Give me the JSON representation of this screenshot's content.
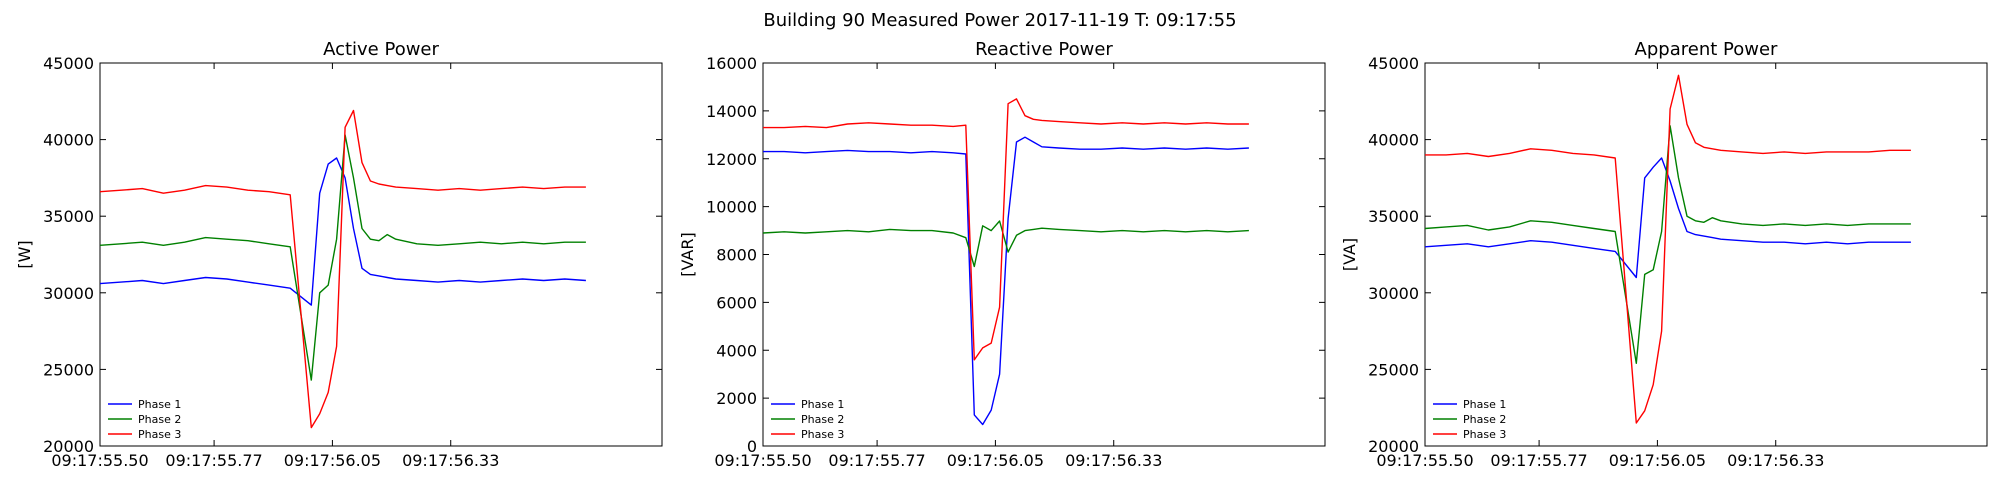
{
  "figure": {
    "suptitle": "Building 90 Measured Power 2017-11-19 T: 09:17:55"
  },
  "colors": {
    "Phase 1": "#0000ff",
    "Phase 2": "#008000",
    "Phase 3": "#ff0000"
  },
  "chart_data": [
    {
      "type": "line",
      "title": "Active Power",
      "ylabel": "[W]",
      "xlabel": "",
      "grid": false,
      "legend": "bottom-left",
      "xlim": [
        0,
        1.33
      ],
      "ylim": [
        20000,
        45000
      ],
      "yticks": [
        20000,
        25000,
        30000,
        35000,
        40000,
        45000
      ],
      "xticks": [
        {
          "t": 0.0,
          "label": "09:17:55.50"
        },
        {
          "t": 0.27,
          "label": "09:17:55.77"
        },
        {
          "t": 0.55,
          "label": "09:17:56.05"
        },
        {
          "t": 0.83,
          "label": "09:17:56.33"
        }
      ],
      "x": [
        0.0,
        0.05,
        0.1,
        0.15,
        0.2,
        0.25,
        0.3,
        0.35,
        0.4,
        0.45,
        0.5,
        0.52,
        0.54,
        0.56,
        0.58,
        0.6,
        0.62,
        0.64,
        0.66,
        0.68,
        0.7,
        0.75,
        0.8,
        0.85,
        0.9,
        0.95,
        1.0,
        1.05,
        1.1,
        1.15
      ],
      "series": [
        {
          "name": "Phase 1",
          "values": [
            30600,
            30700,
            30800,
            30600,
            30800,
            31000,
            30900,
            30700,
            30500,
            30300,
            29200,
            36500,
            38400,
            38800,
            37500,
            34200,
            31600,
            31200,
            31100,
            31000,
            30900,
            30800,
            30700,
            30800,
            30700,
            30800,
            30900,
            30800,
            30900,
            30800
          ]
        },
        {
          "name": "Phase 2",
          "values": [
            33100,
            33200,
            33300,
            33100,
            33300,
            33600,
            33500,
            33400,
            33200,
            33000,
            24300,
            30000,
            30500,
            33500,
            40300,
            37500,
            34200,
            33500,
            33400,
            33800,
            33500,
            33200,
            33100,
            33200,
            33300,
            33200,
            33300,
            33200,
            33300,
            33300
          ]
        },
        {
          "name": "Phase 3",
          "values": [
            36600,
            36700,
            36800,
            36500,
            36700,
            37000,
            36900,
            36700,
            36600,
            36400,
            21200,
            22100,
            23500,
            26500,
            40800,
            41900,
            38500,
            37300,
            37100,
            37000,
            36900,
            36800,
            36700,
            36800,
            36700,
            36800,
            36900,
            36800,
            36900,
            36900
          ]
        }
      ]
    },
    {
      "type": "line",
      "title": "Reactive Power",
      "ylabel": "[VAR]",
      "xlabel": "",
      "grid": false,
      "legend": "bottom-left",
      "xlim": [
        0,
        1.33
      ],
      "ylim": [
        0,
        16000
      ],
      "yticks": [
        0,
        2000,
        4000,
        6000,
        8000,
        10000,
        12000,
        14000,
        16000
      ],
      "xticks": [
        {
          "t": 0.0,
          "label": "09:17:55.50"
        },
        {
          "t": 0.27,
          "label": "09:17:55.77"
        },
        {
          "t": 0.55,
          "label": "09:17:56.05"
        },
        {
          "t": 0.83,
          "label": "09:17:56.33"
        }
      ],
      "x": [
        0.0,
        0.05,
        0.1,
        0.15,
        0.2,
        0.25,
        0.3,
        0.35,
        0.4,
        0.45,
        0.48,
        0.5,
        0.52,
        0.54,
        0.56,
        0.58,
        0.6,
        0.62,
        0.64,
        0.66,
        0.7,
        0.75,
        0.8,
        0.85,
        0.9,
        0.95,
        1.0,
        1.05,
        1.1,
        1.15
      ],
      "series": [
        {
          "name": "Phase 1",
          "values": [
            12300,
            12300,
            12250,
            12300,
            12350,
            12300,
            12300,
            12250,
            12300,
            12250,
            12200,
            1300,
            900,
            1500,
            3000,
            9500,
            12700,
            12900,
            12700,
            12500,
            12450,
            12400,
            12400,
            12450,
            12400,
            12450,
            12400,
            12450,
            12400,
            12450
          ]
        },
        {
          "name": "Phase 2",
          "values": [
            8900,
            8950,
            8900,
            8950,
            9000,
            8950,
            9050,
            9000,
            9000,
            8900,
            8700,
            7500,
            9200,
            9000,
            9400,
            8100,
            8800,
            9000,
            9050,
            9100,
            9050,
            9000,
            8950,
            9000,
            8950,
            9000,
            8950,
            9000,
            8950,
            9000
          ]
        },
        {
          "name": "Phase 3",
          "values": [
            13300,
            13300,
            13350,
            13300,
            13450,
            13500,
            13450,
            13400,
            13400,
            13350,
            13400,
            3600,
            4100,
            4300,
            5800,
            14300,
            14500,
            13800,
            13650,
            13600,
            13550,
            13500,
            13450,
            13500,
            13450,
            13500,
            13450,
            13500,
            13450,
            13450
          ]
        }
      ]
    },
    {
      "type": "line",
      "title": "Apparent Power",
      "ylabel": "[VA]",
      "xlabel": "",
      "grid": false,
      "legend": "bottom-left",
      "xlim": [
        0,
        1.33
      ],
      "ylim": [
        20000,
        45000
      ],
      "yticks": [
        20000,
        25000,
        30000,
        35000,
        40000,
        45000
      ],
      "xticks": [
        {
          "t": 0.0,
          "label": "09:17:55.50"
        },
        {
          "t": 0.27,
          "label": "09:17:55.77"
        },
        {
          "t": 0.55,
          "label": "09:17:56.05"
        },
        {
          "t": 0.83,
          "label": "09:17:56.33"
        }
      ],
      "x": [
        0.0,
        0.05,
        0.1,
        0.15,
        0.2,
        0.25,
        0.3,
        0.35,
        0.4,
        0.45,
        0.5,
        0.52,
        0.54,
        0.56,
        0.58,
        0.6,
        0.62,
        0.64,
        0.66,
        0.68,
        0.7,
        0.75,
        0.8,
        0.85,
        0.9,
        0.95,
        1.0,
        1.05,
        1.1,
        1.15
      ],
      "series": [
        {
          "name": "Phase 1",
          "values": [
            33000,
            33100,
            33200,
            33000,
            33200,
            33400,
            33300,
            33100,
            32900,
            32700,
            31000,
            37500,
            38200,
            38800,
            37300,
            35500,
            34000,
            33800,
            33700,
            33600,
            33500,
            33400,
            33300,
            33300,
            33200,
            33300,
            33200,
            33300,
            33300,
            33300
          ]
        },
        {
          "name": "Phase 2",
          "values": [
            34200,
            34300,
            34400,
            34100,
            34300,
            34700,
            34600,
            34400,
            34200,
            34000,
            25400,
            31200,
            31500,
            34000,
            40900,
            37500,
            35000,
            34700,
            34600,
            34900,
            34700,
            34500,
            34400,
            34500,
            34400,
            34500,
            34400,
            34500,
            34500,
            34500
          ]
        },
        {
          "name": "Phase 3",
          "values": [
            39000,
            39000,
            39100,
            38900,
            39100,
            39400,
            39300,
            39100,
            39000,
            38800,
            21500,
            22300,
            24000,
            27500,
            42000,
            44200,
            41000,
            39800,
            39500,
            39400,
            39300,
            39200,
            39100,
            39200,
            39100,
            39200,
            39200,
            39200,
            39300,
            39300
          ]
        }
      ]
    }
  ]
}
